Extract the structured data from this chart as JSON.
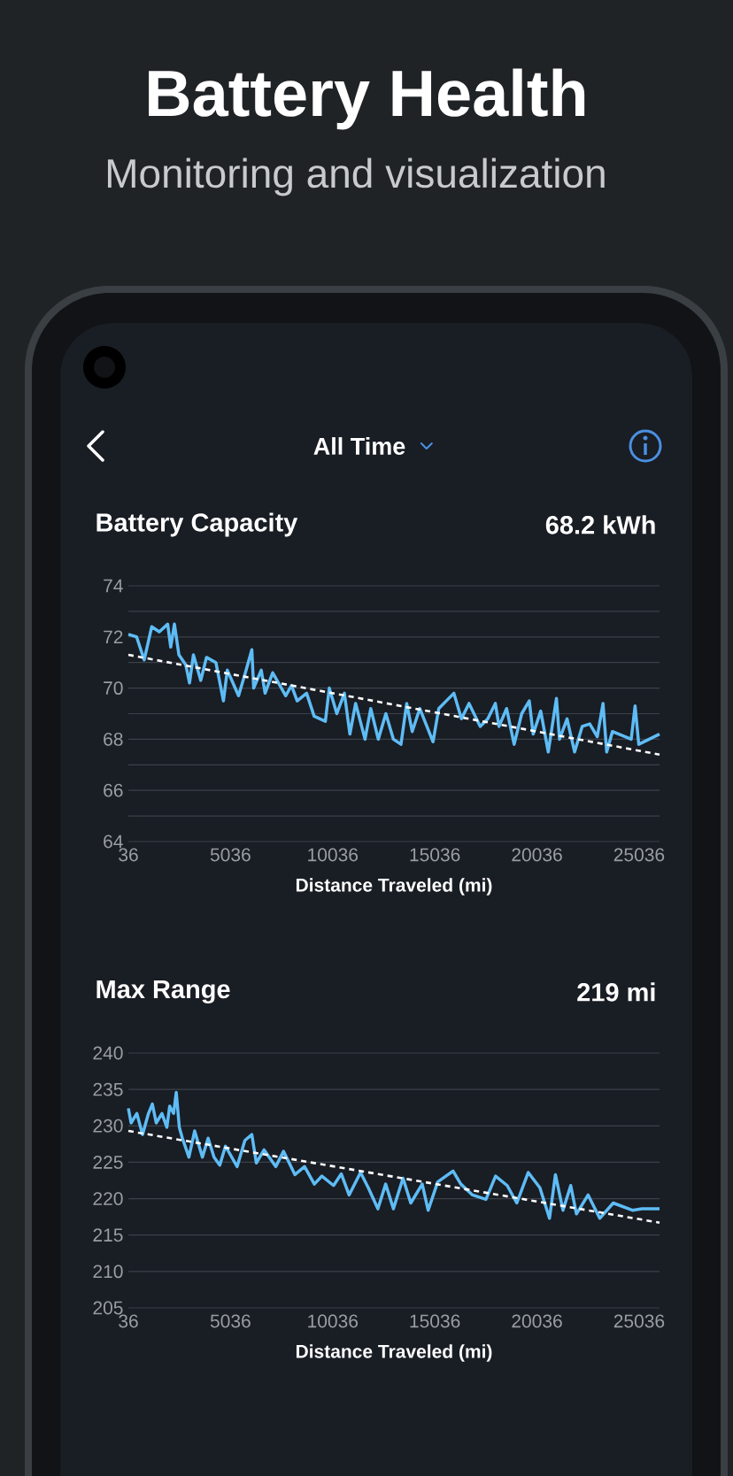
{
  "chart_data": [
    {
      "type": "line",
      "title": "Battery Capacity",
      "subtitle": "68.2 kWh",
      "annotations": [
        "Battery Health",
        "Monitoring and visualization",
        "All Time"
      ],
      "xlabel": "Distance Traveled (mi)",
      "xlim": [
        36,
        26036
      ],
      "xticks": [
        36,
        5036,
        10036,
        15036,
        20036,
        25036
      ],
      "ylim": [
        64,
        74
      ],
      "yticks": [
        64,
        {
          "value": 65,
          "label": null
        },
        66,
        {
          "value": 67,
          "label": null
        },
        68,
        {
          "value": 69,
          "label": null
        },
        70,
        {
          "value": 71,
          "label": null
        },
        72,
        {
          "value": 73,
          "label": null
        },
        74
      ],
      "grid": "y",
      "series": [
        {
          "color": "#5ebcf5",
          "line_style": "solid",
          "x": [
            36,
            440,
            810,
            1180,
            1550,
            1960,
            2110,
            2290,
            2510,
            2850,
            3030,
            3220,
            3580,
            3860,
            4320,
            4690,
            4880,
            5430,
            5800,
            6080,
            6170,
            6540,
            6730,
            7100,
            7740,
            8020,
            8300,
            8760,
            9130,
            9680,
            9870,
            10240,
            10610,
            10880,
            11160,
            11620,
            11900,
            12270,
            12640,
            13010,
            13380,
            13660,
            13930,
            14300,
            14950,
            15230,
            15600,
            15970,
            16340,
            16710,
            17260,
            17630,
            18000,
            18180,
            18550,
            18920,
            19290,
            19660,
            19850,
            20220,
            20590,
            20990,
            21140,
            21510,
            21880,
            22250,
            22620,
            22990,
            23270,
            23450,
            23730,
            24650,
            24840,
            25020,
            26036
          ],
          "values": [
            72.1,
            72.0,
            71.1,
            72.4,
            72.2,
            72.5,
            71.6,
            72.5,
            71.3,
            70.9,
            70.2,
            71.3,
            70.3,
            71.2,
            71.0,
            69.5,
            70.7,
            69.7,
            70.7,
            71.5,
            70.0,
            70.7,
            69.8,
            70.6,
            69.7,
            70.1,
            69.5,
            69.8,
            68.9,
            68.7,
            70.0,
            69.0,
            69.8,
            68.2,
            69.4,
            68.0,
            69.2,
            68.0,
            69.0,
            68.0,
            67.8,
            69.4,
            68.3,
            69.2,
            67.9,
            69.2,
            69.5,
            69.8,
            68.8,
            69.4,
            68.5,
            68.8,
            69.4,
            68.5,
            69.2,
            67.8,
            69.0,
            69.5,
            68.2,
            69.1,
            67.5,
            69.6,
            68.0,
            68.8,
            67.5,
            68.5,
            68.6,
            68.1,
            69.4,
            67.5,
            68.3,
            68.0,
            69.3,
            67.8,
            68.2
          ]
        },
        {
          "color": "#ffffff",
          "line_style": "dashed",
          "x": [
            36,
            26036
          ],
          "values": [
            71.3,
            67.4
          ]
        }
      ]
    },
    {
      "type": "line",
      "title": "Max Range",
      "subtitle": "219 mi",
      "xlabel": "Distance Traveled (mi)",
      "xlim": [
        36,
        26036
      ],
      "xticks": [
        36,
        5036,
        10036,
        15036,
        20036,
        25036
      ],
      "ylim": [
        205,
        240
      ],
      "yticks": [
        205,
        210,
        215,
        220,
        225,
        230,
        235,
        240
      ],
      "grid": "y",
      "series": [
        {
          "color": "#5ebcf5",
          "line_style": "solid",
          "x": [
            36,
            170,
            450,
            730,
            1020,
            1210,
            1400,
            1680,
            1920,
            2060,
            2250,
            2380,
            2530,
            2680,
            3000,
            3280,
            3660,
            3940,
            4230,
            4510,
            4790,
            5360,
            5740,
            6080,
            6300,
            6680,
            7250,
            7630,
            8190,
            8660,
            9140,
            9510,
            10080,
            10460,
            10840,
            11400,
            11780,
            12250,
            12630,
            13010,
            13480,
            13860,
            14420,
            14710,
            15180,
            15930,
            16310,
            16880,
            17540,
            18010,
            18580,
            19050,
            19610,
            20180,
            20650,
            20940,
            21310,
            21690,
            21970,
            22540,
            23110,
            23770,
            24710,
            25180,
            26036
          ],
          "values": [
            232.4,
            230.4,
            231.7,
            228.8,
            231.7,
            233.0,
            230.4,
            231.7,
            229.8,
            232.7,
            231.7,
            234.6,
            229.8,
            228.3,
            225.7,
            229.3,
            225.7,
            228.3,
            225.7,
            224.6,
            227.2,
            224.4,
            228.0,
            228.8,
            224.9,
            226.7,
            224.4,
            226.5,
            223.3,
            224.4,
            222.0,
            223.1,
            221.8,
            223.4,
            220.5,
            223.6,
            221.5,
            218.6,
            222.0,
            218.6,
            222.8,
            219.4,
            222.0,
            218.4,
            222.3,
            223.8,
            222.0,
            220.5,
            219.9,
            223.1,
            221.8,
            219.4,
            223.6,
            221.5,
            217.3,
            223.3,
            218.4,
            221.8,
            217.9,
            220.5,
            217.3,
            219.4,
            218.4,
            218.6,
            218.6
          ]
        },
        {
          "color": "#ffffff",
          "line_style": "dashed",
          "x": [
            36,
            26036
          ],
          "values": [
            229.3,
            216.7
          ]
        }
      ]
    }
  ]
}
